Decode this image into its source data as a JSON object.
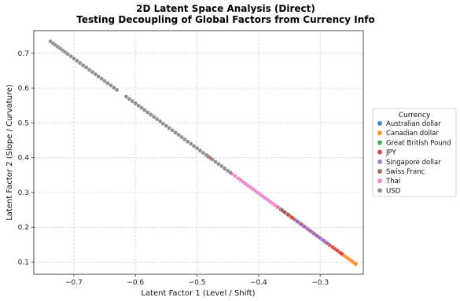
{
  "chart_data": {
    "type": "scatter",
    "title": "2D Latent Space Analysis (Direct)",
    "subtitle": "Testing Decoupling of Global Factors from Currency Info",
    "xlabel": "Latent Factor 1 (Level / Shift)",
    "ylabel": "Latent Factor 2 (Slope / Curvature)",
    "xlim": [
      -0.765,
      -0.23
    ],
    "ylim": [
      0.065,
      0.765
    ],
    "xticks": [
      -0.7,
      -0.6,
      -0.5,
      -0.4,
      -0.3
    ],
    "xtick_labels": [
      "−0.7",
      "−0.6",
      "−0.5",
      "−0.4",
      "−0.3"
    ],
    "yticks": [
      0.1,
      0.2,
      0.3,
      0.4,
      0.5,
      0.6,
      0.7
    ],
    "ytick_labels": [
      "0.1",
      "0.2",
      "0.3",
      "0.4",
      "0.5",
      "0.6",
      "0.7"
    ],
    "grid": true,
    "legend": {
      "title": "Currency",
      "placement": "right-outside"
    },
    "series": [
      {
        "name": "Australian dollar",
        "color": "#1f77b4",
        "x": [
          -0.335,
          -0.315,
          -0.292
        ]
      },
      {
        "name": "Canadian dollar",
        "color": "#ff7f0e",
        "x": [
          -0.262,
          -0.258,
          -0.255,
          -0.252,
          -0.25,
          -0.248,
          -0.246,
          -0.244,
          -0.242
        ]
      },
      {
        "name": "Great British Pound",
        "color": "#2ca02c",
        "x": [
          -0.344,
          -0.328
        ]
      },
      {
        "name": "JPY",
        "color": "#d62728",
        "x": [
          -0.36,
          -0.355,
          -0.35,
          -0.346,
          -0.342,
          -0.338,
          -0.332,
          -0.327,
          -0.322,
          -0.318,
          -0.312,
          -0.307,
          -0.302,
          -0.29,
          -0.285,
          -0.28,
          -0.276,
          -0.272,
          -0.268,
          -0.265
        ]
      },
      {
        "name": "Singapore dollar",
        "color": "#9467bd",
        "x": [
          -0.34,
          -0.337,
          -0.33,
          -0.325,
          -0.32,
          -0.316,
          -0.31,
          -0.305,
          -0.3,
          -0.297,
          -0.294,
          -0.288
        ]
      },
      {
        "name": "Swiss Franc",
        "color": "#8c564b",
        "x": [
          -0.368,
          -0.364,
          -0.362,
          -0.358,
          -0.352,
          -0.482,
          -0.478
        ]
      },
      {
        "name": "Thai",
        "color": "#e377c2",
        "x": [
          -0.443,
          -0.438,
          -0.433,
          -0.429,
          -0.425,
          -0.421,
          -0.417,
          -0.413,
          -0.409,
          -0.405,
          -0.401,
          -0.397,
          -0.393,
          -0.389,
          -0.385,
          -0.381,
          -0.377,
          -0.373,
          -0.369
        ]
      },
      {
        "name": "USD",
        "color": "#7f7f7f",
        "x": [
          -0.738,
          -0.734,
          -0.73,
          -0.726,
          -0.722,
          -0.718,
          -0.714,
          -0.71,
          -0.705,
          -0.7,
          -0.695,
          -0.69,
          -0.685,
          -0.68,
          -0.675,
          -0.67,
          -0.665,
          -0.66,
          -0.655,
          -0.65,
          -0.645,
          -0.64,
          -0.635,
          -0.63,
          -0.615,
          -0.61,
          -0.605,
          -0.6,
          -0.595,
          -0.59,
          -0.585,
          -0.58,
          -0.575,
          -0.57,
          -0.565,
          -0.56,
          -0.555,
          -0.55,
          -0.545,
          -0.54,
          -0.535,
          -0.53,
          -0.525,
          -0.52,
          -0.515,
          -0.51,
          -0.505,
          -0.5,
          -0.495,
          -0.49,
          -0.485,
          -0.475,
          -0.47,
          -0.465,
          -0.46,
          -0.455,
          -0.45,
          -0.446
        ]
      }
    ],
    "line_relation": {
      "slope": -1.29,
      "intercept": -0.218
    }
  }
}
